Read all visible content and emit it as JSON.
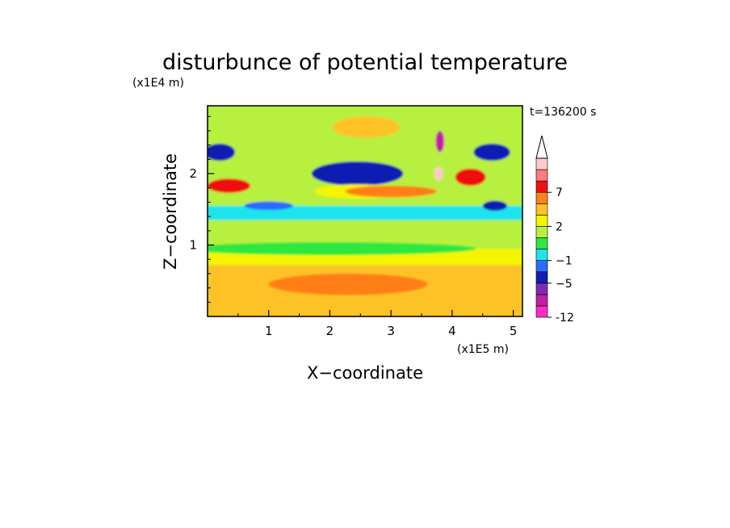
{
  "chart_data": {
    "type": "heatmap",
    "title": "disturbunce of potential temperature",
    "xlabel": "X−coordinate",
    "ylabel": "Z−coordinate",
    "x_unit": "(x1E5 m)",
    "y_unit": "(x1E4 m)",
    "time_label": "t=136200 s",
    "xlim": [
      0,
      5.15
    ],
    "ylim": [
      0,
      2.95
    ],
    "x_ticks": [
      "1",
      "2",
      "3",
      "4",
      "5"
    ],
    "x_tick_values": [
      1,
      2,
      3,
      4,
      5
    ],
    "y_ticks": [
      "1",
      "2"
    ],
    "y_tick_values": [
      1,
      2
    ],
    "colorbar": {
      "levels": [
        -12,
        -9,
        -7,
        -5,
        -3,
        -1,
        0,
        1,
        2,
        3,
        5,
        7,
        9,
        11
      ],
      "colors": [
        "#ff2bc6",
        "#c21fa8",
        "#7d2bb3",
        "#0f1fb2",
        "#2c6bff",
        "#1fe4ee",
        "#2fe83f",
        "#b8f040",
        "#f5f500",
        "#ffc225",
        "#ff7f18",
        "#f01010",
        "#ff7a7a",
        "#ffc9c9"
      ],
      "tick_labels": [
        "-12",
        "−5",
        "−1",
        "2",
        "7"
      ],
      "tick_values": [
        -12,
        -5,
        -1,
        2,
        7
      ],
      "extend": "max"
    },
    "features": [
      {
        "kind": "band",
        "z_min": 0.0,
        "z_max": 0.12,
        "value": 3
      },
      {
        "kind": "band",
        "z_min": 0.12,
        "z_max": 0.72,
        "value": 3
      },
      {
        "kind": "band",
        "z_min": 0.72,
        "z_max": 0.95,
        "value": 2
      },
      {
        "kind": "band",
        "z_min": 0.95,
        "z_max": 1.35,
        "value": 1
      },
      {
        "kind": "band",
        "z_min": 1.35,
        "z_max": 1.55,
        "value": -1
      },
      {
        "kind": "band",
        "z_min": 1.55,
        "z_max": 2.95,
        "value": 1
      },
      {
        "kind": "blob",
        "x": 2.45,
        "z": 2.0,
        "rx": 0.75,
        "rz": 0.17,
        "value": -5
      },
      {
        "kind": "blob",
        "x": 2.45,
        "z": 1.75,
        "rx": 0.7,
        "rz": 0.1,
        "value": 2
      },
      {
        "kind": "blob",
        "x": 2.6,
        "z": 2.65,
        "rx": 0.55,
        "rz": 0.15,
        "value": 3
      },
      {
        "kind": "blob",
        "x": 0.35,
        "z": 1.83,
        "rx": 0.35,
        "rz": 0.1,
        "value": 7
      },
      {
        "kind": "blob",
        "x": 4.3,
        "z": 1.95,
        "rx": 0.25,
        "rz": 0.12,
        "value": 7
      },
      {
        "kind": "blob",
        "x": 3.8,
        "z": 2.45,
        "rx": 0.07,
        "rz": 0.15,
        "value": -9
      },
      {
        "kind": "blob",
        "x": 3.78,
        "z": 2.0,
        "rx": 0.07,
        "rz": 0.1,
        "value": 11
      },
      {
        "kind": "blob",
        "x": 0.2,
        "z": 2.3,
        "rx": 0.25,
        "rz": 0.12,
        "value": -5
      },
      {
        "kind": "blob",
        "x": 4.65,
        "z": 2.3,
        "rx": 0.3,
        "rz": 0.12,
        "value": -5
      },
      {
        "kind": "blob",
        "x": 4.7,
        "z": 1.55,
        "rx": 0.2,
        "rz": 0.07,
        "value": -5
      },
      {
        "kind": "blob",
        "x": 1.0,
        "z": 1.55,
        "rx": 0.4,
        "rz": 0.06,
        "value": -3
      },
      {
        "kind": "blob",
        "x": 3.0,
        "z": 1.75,
        "rx": 0.75,
        "rz": 0.08,
        "value": 5
      },
      {
        "kind": "blob",
        "x": 2.3,
        "z": 0.45,
        "rx": 1.3,
        "rz": 0.15,
        "value": 5
      },
      {
        "kind": "blob",
        "x": 2.0,
        "z": 0.95,
        "rx": 2.4,
        "rz": 0.09,
        "value": 0
      }
    ]
  }
}
